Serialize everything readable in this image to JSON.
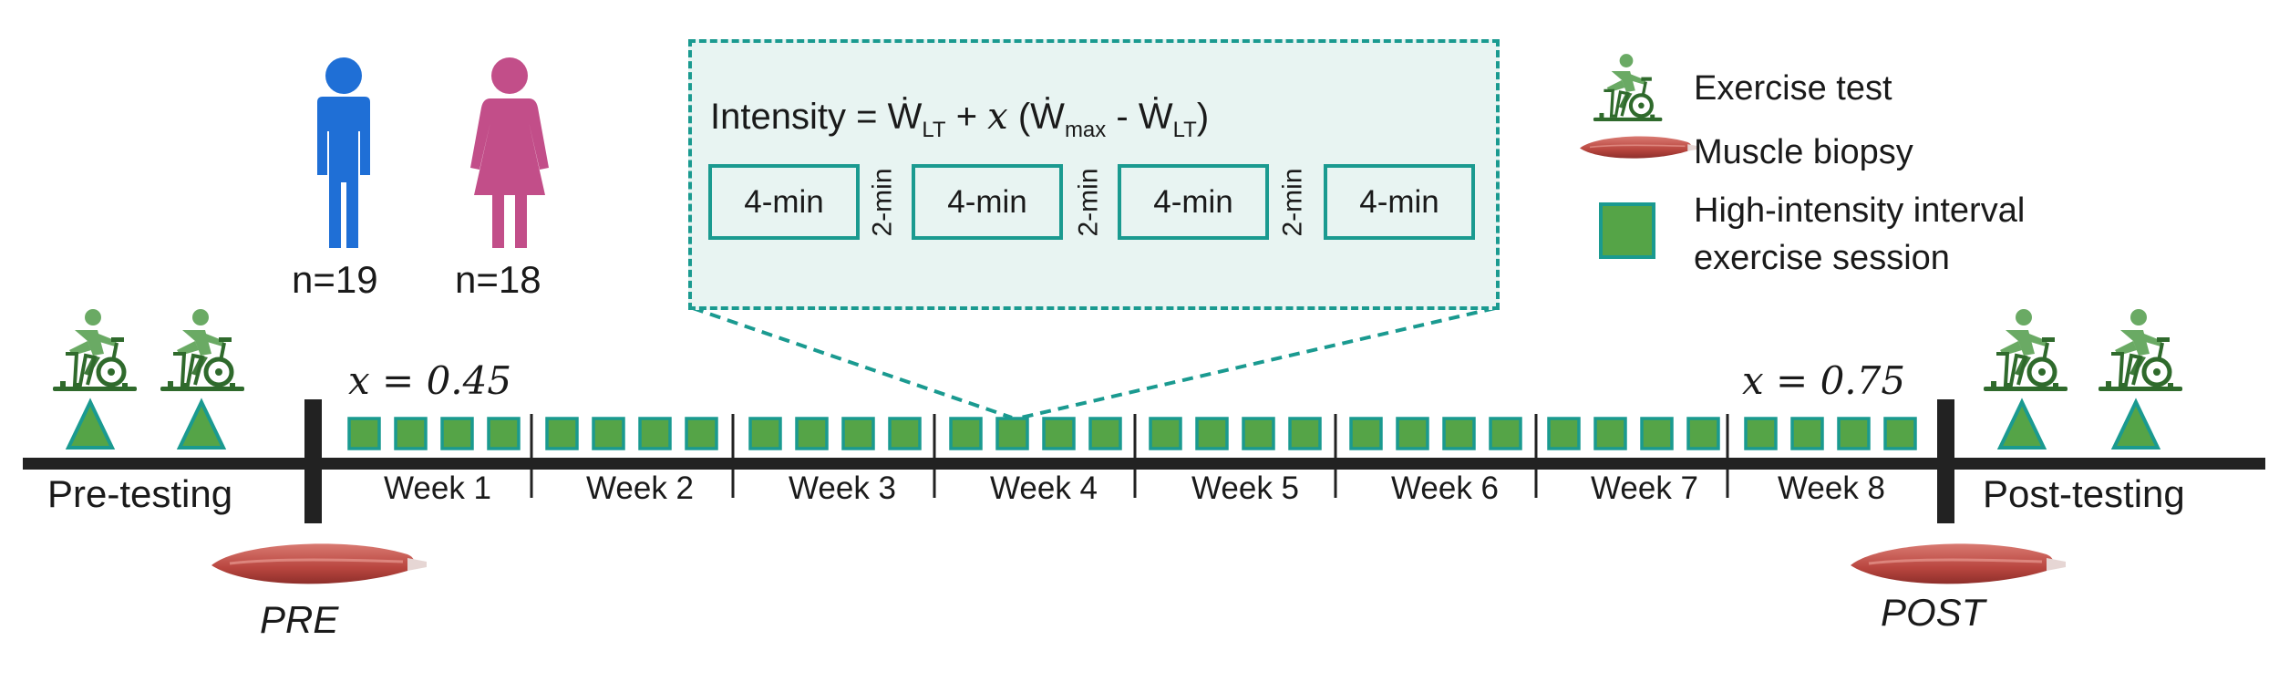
{
  "participants": {
    "male": {
      "label": "n=19",
      "color": "#1f6fd6"
    },
    "female": {
      "label": "n=18",
      "color": "#c24e89"
    }
  },
  "intensity_formula": {
    "prefix": "Intensity =",
    "w_lt": "Ẇ",
    "sub_lt": "LT",
    "plus": "+",
    "x": "𝑥",
    "open": "(Ẇ",
    "sub_max": "max",
    "minus": "- Ẇ",
    "sub_lt2": "LT",
    "close": ")"
  },
  "session_structure": {
    "work_bouts": [
      "4-min",
      "4-min",
      "4-min",
      "4-min"
    ],
    "rest_periods": [
      "2-min",
      "2-min",
      "2-min"
    ]
  },
  "legend": {
    "exercise_test": "Exercise test",
    "muscle_biopsy": "Muscle biopsy",
    "hiit_line1": "High-intensity interval",
    "hiit_line2": "exercise session"
  },
  "timeline": {
    "pre_label": "Pre-testing",
    "post_label": "Post-testing",
    "pre_biopsy": "PRE",
    "post_biopsy": "POST",
    "x_start": "𝑥 = 0.45",
    "x_end": "𝑥 = 0.75",
    "weeks": [
      "Week 1",
      "Week 2",
      "Week 3",
      "Week 4",
      "Week 5",
      "Week 6",
      "Week 7",
      "Week 8"
    ],
    "sessions_per_week": 4
  },
  "colors": {
    "teal": "#1a9a90",
    "session_green": "#55a447",
    "cyclist_green": "#6aaa64",
    "biopsy_red": "#c95a55",
    "timeline": "#222222"
  }
}
